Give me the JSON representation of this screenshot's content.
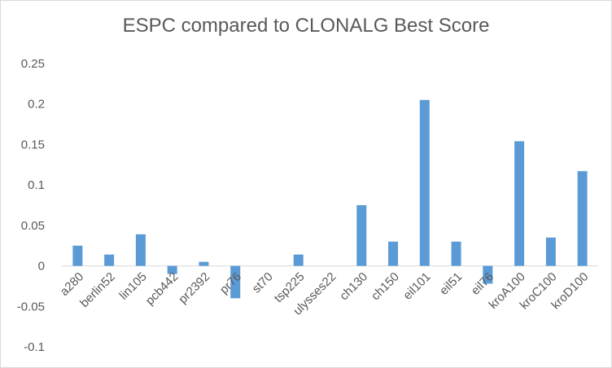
{
  "chart_data": {
    "type": "bar",
    "title": "ESPC compared to CLONALG Best Score",
    "xlabel": "",
    "ylabel": "",
    "categories": [
      "a280",
      "berlin52",
      "lin105",
      "pcb442",
      "pr2392",
      "pr76",
      "st70",
      "tsp225",
      "ulysses22",
      "ch130",
      "ch150",
      "eil101",
      "eil51",
      "eil76",
      "kroA100",
      "kroC100",
      "kroD100"
    ],
    "values": [
      0.025,
      0.014,
      0.039,
      -0.01,
      0.005,
      -0.04,
      0.0,
      0.014,
      0.0,
      0.075,
      0.03,
      0.205,
      0.03,
      -0.022,
      0.154,
      0.035,
      0.117
    ],
    "ylim": [
      -0.1,
      0.25
    ],
    "yticks": [
      "0.25",
      "0.2",
      "0.15",
      "0.1",
      "0.05",
      "0",
      "-0.05",
      "-0.1"
    ],
    "grid": false,
    "legend": "none",
    "bar_color": "#5b9bd5"
  }
}
